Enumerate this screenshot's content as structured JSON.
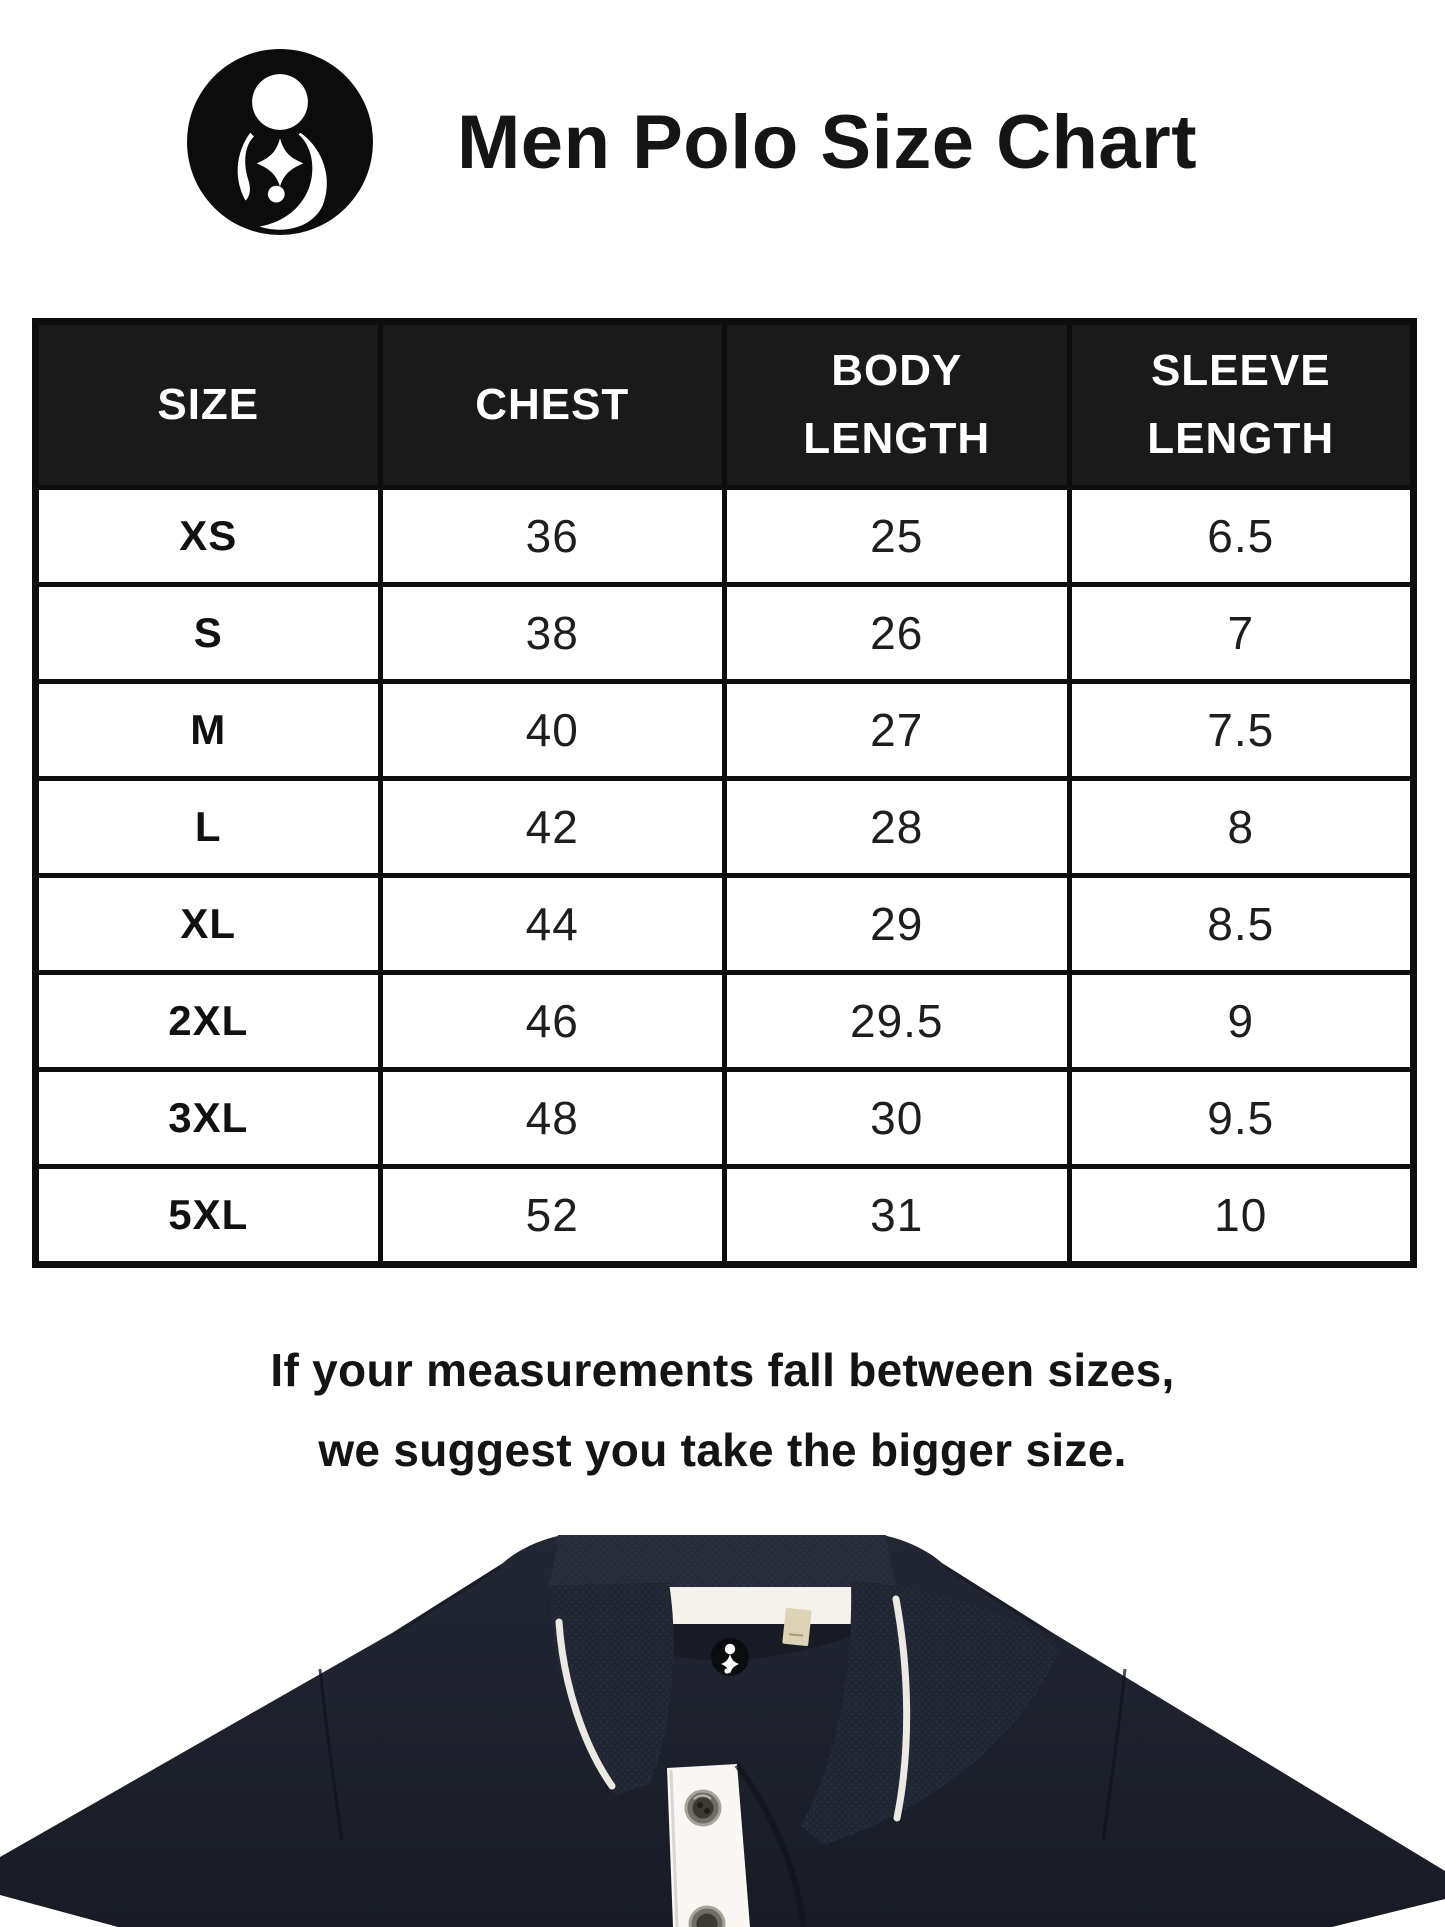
{
  "header": {
    "title": "Men Polo Size Chart",
    "logo": "brand-mother-child-logo"
  },
  "table": {
    "columns": [
      "SIZE",
      "CHEST",
      "BODY LENGTH",
      "SLEEVE LENGTH"
    ],
    "rows": [
      {
        "size": "XS",
        "chest": "36",
        "body_length": "25",
        "sleeve_length": "6.5"
      },
      {
        "size": "S",
        "chest": "38",
        "body_length": "26",
        "sleeve_length": "7"
      },
      {
        "size": "M",
        "chest": "40",
        "body_length": "27",
        "sleeve_length": "7.5"
      },
      {
        "size": "L",
        "chest": "42",
        "body_length": "28",
        "sleeve_length": "8"
      },
      {
        "size": "XL",
        "chest": "44",
        "body_length": "29",
        "sleeve_length": "8.5"
      },
      {
        "size": "2XL",
        "chest": "46",
        "body_length": "29.5",
        "sleeve_length": "9"
      },
      {
        "size": "3XL",
        "chest": "48",
        "body_length": "30",
        "sleeve_length": "9.5"
      },
      {
        "size": "5XL",
        "chest": "52",
        "body_length": "31",
        "sleeve_length": "10"
      }
    ]
  },
  "chart_data": {
    "type": "table",
    "title": "Men Polo Size Chart",
    "columns": [
      "SIZE",
      "CHEST",
      "BODY LENGTH",
      "SLEEVE LENGTH"
    ],
    "rows": [
      [
        "XS",
        36,
        25,
        6.5
      ],
      [
        "S",
        38,
        26,
        7
      ],
      [
        "M",
        40,
        27,
        7.5
      ],
      [
        "L",
        42,
        28,
        8
      ],
      [
        "XL",
        44,
        29,
        8.5
      ],
      [
        "2XL",
        46,
        29.5,
        9
      ],
      [
        "3XL",
        48,
        30,
        9.5
      ],
      [
        "5XL",
        52,
        31,
        10
      ]
    ]
  },
  "note": {
    "line1": "If your measurements fall between sizes,",
    "line2": "we suggest you take the bigger size."
  },
  "product_image": {
    "description": "Navy polo shirt, folded-down tipped collar, white inner neck tape, brand patch, white button placket",
    "colors": {
      "shirt_body": "#1d212c",
      "collar": "#212634",
      "tipping": "#ebe9e4",
      "neck_tape": "#f3f2ed",
      "placket": "#f8f7f3",
      "tag": "#dcd2b6",
      "header_bar": "#1a1a1a",
      "table_border": "#0e0e0e"
    }
  }
}
